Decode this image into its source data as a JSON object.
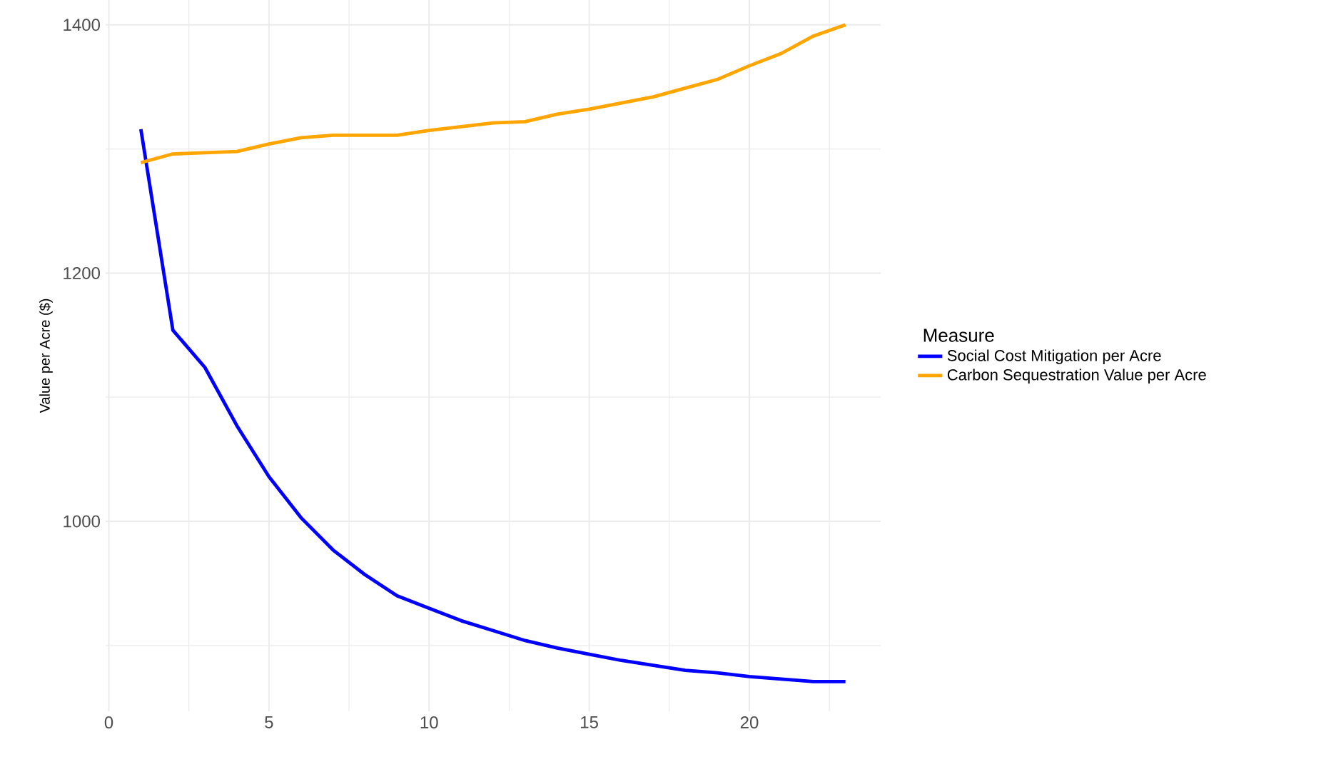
{
  "chart_data": {
    "type": "line",
    "ylabel": "Value per Acre ($)",
    "legend_title": "Measure",
    "legend": "right",
    "grid": true,
    "x": [
      1,
      2,
      3,
      4,
      5,
      6,
      7,
      8,
      9,
      10,
      11,
      12,
      13,
      14,
      15,
      16,
      17,
      18,
      19,
      20,
      21,
      22,
      23
    ],
    "series": [
      {
        "name": "Social Cost Mitigation per Acre",
        "color": "#0000ff",
        "values": [
          1316,
          1154,
          1124,
          1077,
          1036,
          1003,
          977,
          957,
          940,
          930,
          920,
          912,
          904,
          898,
          893,
          888,
          884,
          880,
          878,
          875,
          873,
          871,
          871
        ]
      },
      {
        "name": "Carbon Sequestration Value per Acre",
        "color": "#ffa500",
        "values": [
          1289,
          1296,
          1297,
          1298,
          1304,
          1309,
          1311,
          1311,
          1311,
          1315,
          1318,
          1321,
          1322,
          1328,
          1332,
          1337,
          1342,
          1349,
          1356,
          1367,
          1377,
          1391,
          1400
        ]
      }
    ],
    "xlim": [
      -0.1,
      24.1
    ],
    "ylim": [
      847,
      1420
    ],
    "xticks": [
      0,
      5,
      10,
      15,
      20
    ],
    "yticks": [
      1000,
      1200,
      1400
    ]
  }
}
